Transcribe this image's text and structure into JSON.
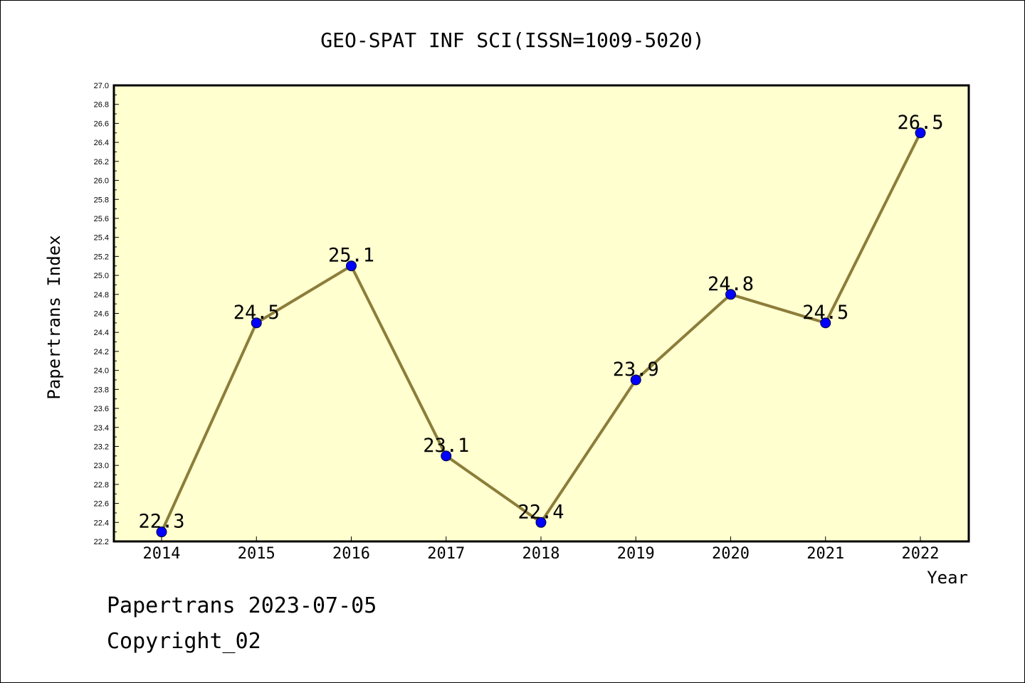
{
  "chart_data": {
    "type": "line",
    "title": "GEO-SPAT INF SCI(ISSN=1009-5020)",
    "xlabel": "Year",
    "ylabel": "Papertrans Index",
    "categories": [
      "2014",
      "2015",
      "2016",
      "2017",
      "2018",
      "2019",
      "2020",
      "2021",
      "2022"
    ],
    "values": [
      22.3,
      24.5,
      25.1,
      23.1,
      22.4,
      23.9,
      24.8,
      24.5,
      26.5
    ],
    "data_labels": [
      "22.3",
      "24.5",
      "25.1",
      "23.1",
      "22.4",
      "23.9",
      "24.8",
      "24.5",
      "26.5"
    ],
    "ylim": [
      22.2,
      27.0
    ],
    "y_ticks": [
      "22.2",
      "22.4",
      "22.6",
      "22.8",
      "23.0",
      "23.2",
      "23.4",
      "23.6",
      "23.8",
      "24.0",
      "24.2",
      "24.4",
      "24.6",
      "24.8",
      "25.0",
      "25.2",
      "25.4",
      "25.6",
      "25.8",
      "26.0",
      "26.2",
      "26.4",
      "26.6",
      "26.8",
      "27.0"
    ],
    "grid": false,
    "colors": {
      "plot_background": "#ffffd0",
      "line": "#8c7d3a",
      "marker": "#0000ff"
    }
  },
  "footer": {
    "date_line": "Papertrans 2023-07-05",
    "copyright_line": "Copyright_02"
  }
}
